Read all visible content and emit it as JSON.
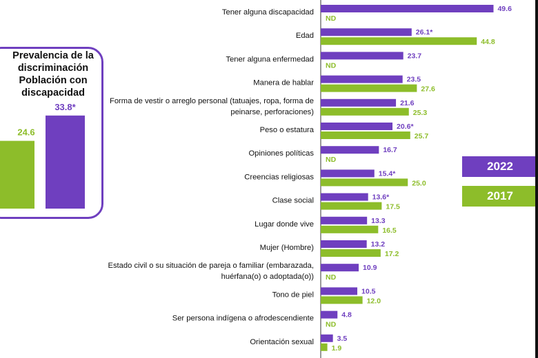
{
  "colors": {
    "y2022": "#6f3fbf",
    "y2017": "#8dbd2a"
  },
  "inset": {
    "title": "Prevalencia de la\ndiscriminación\nPoblación con\ndiscapacidad",
    "values": [
      {
        "year": "2017",
        "value": 24.6,
        "label": "24.6"
      },
      {
        "year": "2022",
        "value": 33.8,
        "label": "33.8*"
      }
    ]
  },
  "legend": {
    "y2022": "2022",
    "y2017": "2017"
  },
  "chart_data": {
    "type": "bar",
    "orientation": "horizontal",
    "categories": [
      "Tener alguna discapacidad",
      "Edad",
      "Tener alguna enfermedad",
      "Manera de hablar",
      "Forma de vestir o arreglo personal (tatuajes, ropa, forma de\npeinarse, perforaciones)",
      "Peso o estatura",
      "Opiniones políticas",
      "Creencias religiosas",
      "Clase social",
      "Lugar donde vive",
      "Mujer (Hombre)",
      "Estado civil o su situación de pareja o familiar (embarazada,\nhuérfana(o) o adoptada(o))",
      "Tono de piel",
      "Ser persona indígena o afrodescendiente",
      "Orientación sexual"
    ],
    "series": [
      {
        "name": "2022",
        "values": [
          49.6,
          26.1,
          23.7,
          23.5,
          21.6,
          20.6,
          16.7,
          15.4,
          13.6,
          13.3,
          13.2,
          10.9,
          10.5,
          4.8,
          3.5
        ],
        "labels": [
          "49.6",
          "26.1*",
          "23.7",
          "23.5",
          "21.6",
          "20.6*",
          "16.7",
          "15.4*",
          "13.6*",
          "13.3",
          "13.2",
          "10.9",
          "10.5",
          "4.8",
          "3.5"
        ]
      },
      {
        "name": "2017",
        "values": [
          null,
          44.8,
          null,
          27.6,
          25.3,
          25.7,
          null,
          25.0,
          17.5,
          16.5,
          17.2,
          null,
          12.0,
          null,
          1.9
        ],
        "labels": [
          "ND",
          "44.8",
          "ND",
          "27.6",
          "25.3",
          "25.7",
          "ND",
          "25.0",
          "17.5",
          "16.5",
          "17.2",
          "ND",
          "12.0",
          "ND",
          "1.9"
        ]
      }
    ]
  }
}
